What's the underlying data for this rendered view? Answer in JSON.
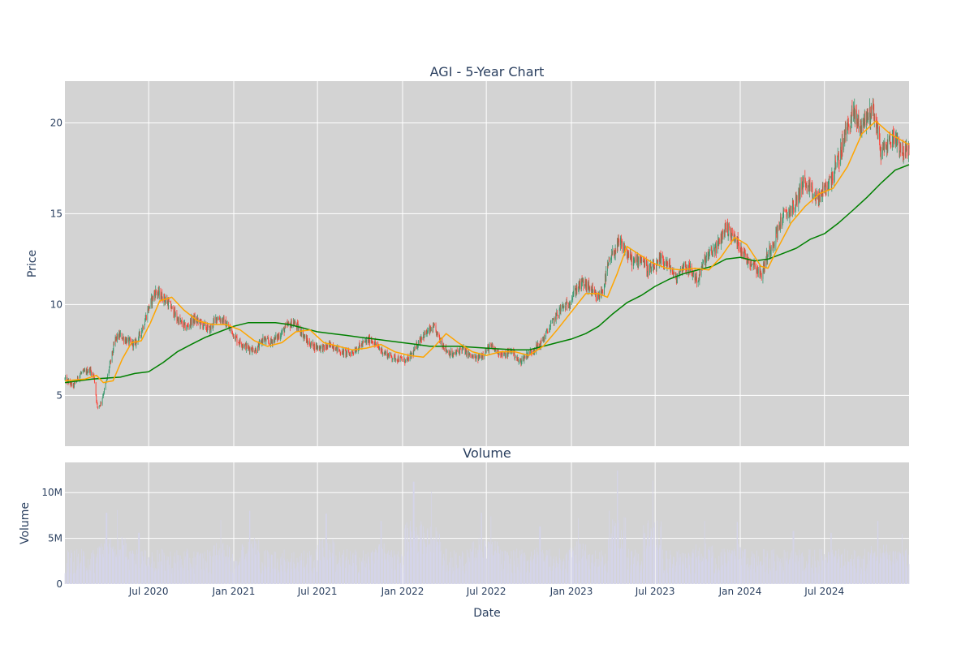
{
  "chart_data": [
    {
      "type": "candlestick",
      "title": "AGI - 5-Year Chart",
      "ylabel": "Price",
      "ylim": [
        2.2,
        22.3
      ],
      "yticks": [
        "5",
        "10",
        "15",
        "20"
      ],
      "grid": true,
      "x_range": [
        "2020-01-02",
        "2024-12-31"
      ],
      "colors": {
        "up": "#3d9970",
        "down": "#ff4136",
        "ma_short": "#ffa500",
        "ma_long": "#008000",
        "plot_bg": "#d3d3d3"
      },
      "price_path": [
        [
          "2020-01-02",
          5.9
        ],
        [
          "2020-01-20",
          5.5
        ],
        [
          "2020-02-05",
          6.2
        ],
        [
          "2020-02-25",
          6.4
        ],
        [
          "2020-03-05",
          6.0
        ],
        [
          "2020-03-12",
          4.3
        ],
        [
          "2020-03-20",
          4.6
        ],
        [
          "2020-04-01",
          5.8
        ],
        [
          "2020-04-10",
          6.9
        ],
        [
          "2020-04-20",
          8.1
        ],
        [
          "2020-04-30",
          8.3
        ],
        [
          "2020-05-15",
          8.0
        ],
        [
          "2020-06-01",
          7.8
        ],
        [
          "2020-06-15",
          8.5
        ],
        [
          "2020-07-01",
          9.8
        ],
        [
          "2020-07-15",
          10.7
        ],
        [
          "2020-08-01",
          10.4
        ],
        [
          "2020-08-15",
          10.0
        ],
        [
          "2020-09-01",
          9.2
        ],
        [
          "2020-09-20",
          8.7
        ],
        [
          "2020-10-05",
          9.2
        ],
        [
          "2020-10-20",
          9.0
        ],
        [
          "2020-11-10",
          8.6
        ],
        [
          "2020-11-25",
          9.3
        ],
        [
          "2020-12-10",
          9.1
        ],
        [
          "2020-12-25",
          8.6
        ],
        [
          "2021-01-10",
          8.0
        ],
        [
          "2021-02-01",
          7.6
        ],
        [
          "2021-02-20",
          7.5
        ],
        [
          "2021-03-05",
          8.1
        ],
        [
          "2021-03-20",
          7.9
        ],
        [
          "2021-04-10",
          8.3
        ],
        [
          "2021-04-25",
          8.8
        ],
        [
          "2021-05-10",
          9.0
        ],
        [
          "2021-05-25",
          8.6
        ],
        [
          "2021-06-10",
          7.9
        ],
        [
          "2021-06-25",
          7.7
        ],
        [
          "2021-07-15",
          7.6
        ],
        [
          "2021-08-01",
          7.8
        ],
        [
          "2021-08-20",
          7.4
        ],
        [
          "2021-09-10",
          7.3
        ],
        [
          "2021-09-25",
          7.6
        ],
        [
          "2021-10-10",
          7.9
        ],
        [
          "2021-10-25",
          8.1
        ],
        [
          "2021-11-10",
          7.6
        ],
        [
          "2021-11-25",
          7.3
        ],
        [
          "2021-12-10",
          7.1
        ],
        [
          "2021-12-25",
          7.0
        ],
        [
          "2022-01-10",
          6.9
        ],
        [
          "2022-01-25",
          7.4
        ],
        [
          "2022-02-10",
          8.2
        ],
        [
          "2022-02-25",
          8.5
        ],
        [
          "2022-03-10",
          8.7
        ],
        [
          "2022-03-20",
          8.2
        ],
        [
          "2022-04-05",
          7.5
        ],
        [
          "2022-04-20",
          7.2
        ],
        [
          "2022-05-10",
          7.6
        ],
        [
          "2022-05-25",
          7.2
        ],
        [
          "2022-06-10",
          7.0
        ],
        [
          "2022-06-25",
          7.3
        ],
        [
          "2022-07-10",
          7.7
        ],
        [
          "2022-07-25",
          7.4
        ],
        [
          "2022-08-10",
          7.2
        ],
        [
          "2022-08-25",
          7.5
        ],
        [
          "2022-09-10",
          6.8
        ],
        [
          "2022-09-25",
          7.2
        ],
        [
          "2022-10-10",
          7.5
        ],
        [
          "2022-10-25",
          7.8
        ],
        [
          "2022-11-10",
          8.5
        ],
        [
          "2022-11-25",
          9.2
        ],
        [
          "2022-12-10",
          9.8
        ],
        [
          "2022-12-25",
          10.0
        ],
        [
          "2023-01-10",
          10.8
        ],
        [
          "2023-01-25",
          11.2
        ],
        [
          "2023-02-10",
          10.9
        ],
        [
          "2023-02-25",
          10.3
        ],
        [
          "2023-03-10",
          10.8
        ],
        [
          "2023-03-20",
          12.0
        ],
        [
          "2023-04-01",
          12.8
        ],
        [
          "2023-04-15",
          13.4
        ],
        [
          "2023-05-01",
          12.8
        ],
        [
          "2023-05-15",
          12.3
        ],
        [
          "2023-06-01",
          12.6
        ],
        [
          "2023-06-15",
          11.9
        ],
        [
          "2023-07-01",
          12.0
        ],
        [
          "2023-07-15",
          12.5
        ],
        [
          "2023-08-01",
          12.1
        ],
        [
          "2023-08-15",
          11.4
        ],
        [
          "2023-09-01",
          12.2
        ],
        [
          "2023-09-15",
          11.9
        ],
        [
          "2023-10-01",
          11.3
        ],
        [
          "2023-10-15",
          12.4
        ],
        [
          "2023-11-01",
          12.9
        ],
        [
          "2023-11-15",
          13.3
        ],
        [
          "2023-12-01",
          14.3
        ],
        [
          "2023-12-15",
          13.8
        ],
        [
          "2024-01-01",
          13.2
        ],
        [
          "2024-01-15",
          12.5
        ],
        [
          "2024-02-01",
          12.2
        ],
        [
          "2024-02-15",
          11.6
        ],
        [
          "2024-03-01",
          12.8
        ],
        [
          "2024-03-15",
          13.6
        ],
        [
          "2024-04-01",
          14.8
        ],
        [
          "2024-04-15",
          15.1
        ],
        [
          "2024-05-01",
          15.6
        ],
        [
          "2024-05-15",
          16.8
        ],
        [
          "2024-06-01",
          16.2
        ],
        [
          "2024-06-15",
          15.8
        ],
        [
          "2024-07-01",
          16.3
        ],
        [
          "2024-07-15",
          16.9
        ],
        [
          "2024-08-01",
          18.0
        ],
        [
          "2024-08-15",
          19.4
        ],
        [
          "2024-09-01",
          20.6
        ],
        [
          "2024-09-15",
          19.8
        ],
        [
          "2024-10-01",
          20.3
        ],
        [
          "2024-10-15",
          20.8
        ],
        [
          "2024-11-01",
          18.3
        ],
        [
          "2024-11-15",
          18.9
        ],
        [
          "2024-12-01",
          19.3
        ],
        [
          "2024-12-15",
          18.5
        ],
        [
          "2024-12-31",
          18.3
        ]
      ],
      "ma_short": [
        [
          "2020-01-02",
          5.8
        ],
        [
          "2020-02-15",
          5.9
        ],
        [
          "2020-03-10",
          6.1
        ],
        [
          "2020-03-25",
          5.7
        ],
        [
          "2020-04-15",
          5.8
        ],
        [
          "2020-05-05",
          7.0
        ],
        [
          "2020-05-25",
          7.9
        ],
        [
          "2020-06-15",
          8.0
        ],
        [
          "2020-07-05",
          9.0
        ],
        [
          "2020-07-25",
          10.2
        ],
        [
          "2020-08-20",
          10.4
        ],
        [
          "2020-09-15",
          9.7
        ],
        [
          "2020-10-15",
          9.1
        ],
        [
          "2020-11-15",
          8.9
        ],
        [
          "2020-12-15",
          8.9
        ],
        [
          "2021-01-15",
          8.6
        ],
        [
          "2021-02-15",
          8.0
        ],
        [
          "2021-03-15",
          7.7
        ],
        [
          "2021-04-15",
          7.9
        ],
        [
          "2021-05-15",
          8.5
        ],
        [
          "2021-06-15",
          8.6
        ],
        [
          "2021-07-15",
          7.9
        ],
        [
          "2021-08-15",
          7.7
        ],
        [
          "2021-09-15",
          7.5
        ],
        [
          "2021-10-15",
          7.6
        ],
        [
          "2021-11-15",
          7.8
        ],
        [
          "2021-12-15",
          7.4
        ],
        [
          "2022-01-15",
          7.2
        ],
        [
          "2022-02-15",
          7.1
        ],
        [
          "2022-03-15",
          7.8
        ],
        [
          "2022-04-05",
          8.4
        ],
        [
          "2022-05-01",
          7.9
        ],
        [
          "2022-06-01",
          7.4
        ],
        [
          "2022-07-01",
          7.2
        ],
        [
          "2022-08-01",
          7.4
        ],
        [
          "2022-09-01",
          7.4
        ],
        [
          "2022-10-01",
          7.2
        ],
        [
          "2022-11-01",
          7.7
        ],
        [
          "2022-12-01",
          8.6
        ],
        [
          "2023-01-01",
          9.6
        ],
        [
          "2023-02-01",
          10.6
        ],
        [
          "2023-03-01",
          10.6
        ],
        [
          "2023-03-20",
          10.4
        ],
        [
          "2023-04-10",
          11.7
        ],
        [
          "2023-05-01",
          13.2
        ],
        [
          "2023-05-25",
          12.8
        ],
        [
          "2023-06-25",
          12.3
        ],
        [
          "2023-07-25",
          12.0
        ],
        [
          "2023-08-25",
          11.9
        ],
        [
          "2023-09-25",
          12.0
        ],
        [
          "2023-10-25",
          11.9
        ],
        [
          "2023-11-20",
          12.6
        ],
        [
          "2023-12-20",
          13.7
        ],
        [
          "2024-01-15",
          13.3
        ],
        [
          "2024-02-15",
          12.1
        ],
        [
          "2024-03-01",
          12.0
        ],
        [
          "2024-03-20",
          13.0
        ],
        [
          "2024-04-20",
          14.5
        ],
        [
          "2024-05-20",
          15.4
        ],
        [
          "2024-06-20",
          16.1
        ],
        [
          "2024-07-20",
          16.4
        ],
        [
          "2024-08-20",
          17.6
        ],
        [
          "2024-09-20",
          19.4
        ],
        [
          "2024-10-20",
          20.1
        ],
        [
          "2024-11-20",
          19.4
        ],
        [
          "2024-12-31",
          18.8
        ]
      ],
      "ma_long": [
        [
          "2020-01-02",
          5.7
        ],
        [
          "2020-03-01",
          5.9
        ],
        [
          "2020-05-01",
          6.0
        ],
        [
          "2020-06-01",
          6.2
        ],
        [
          "2020-07-01",
          6.3
        ],
        [
          "2020-08-01",
          6.8
        ],
        [
          "2020-09-01",
          7.4
        ],
        [
          "2020-10-01",
          7.8
        ],
        [
          "2020-11-01",
          8.2
        ],
        [
          "2020-12-01",
          8.5
        ],
        [
          "2021-01-01",
          8.8
        ],
        [
          "2021-02-01",
          9.0
        ],
        [
          "2021-03-01",
          9.0
        ],
        [
          "2021-04-01",
          9.0
        ],
        [
          "2021-05-01",
          8.9
        ],
        [
          "2021-06-01",
          8.7
        ],
        [
          "2021-07-01",
          8.5
        ],
        [
          "2021-08-01",
          8.4
        ],
        [
          "2021-09-01",
          8.3
        ],
        [
          "2021-10-01",
          8.2
        ],
        [
          "2021-11-01",
          8.1
        ],
        [
          "2021-12-01",
          8.0
        ],
        [
          "2022-01-01",
          7.9
        ],
        [
          "2022-02-01",
          7.8
        ],
        [
          "2022-03-01",
          7.7
        ],
        [
          "2022-05-01",
          7.7
        ],
        [
          "2022-07-01",
          7.6
        ],
        [
          "2022-09-01",
          7.5
        ],
        [
          "2022-10-01",
          7.5
        ],
        [
          "2022-11-01",
          7.7
        ],
        [
          "2022-12-01",
          7.9
        ],
        [
          "2023-01-01",
          8.1
        ],
        [
          "2023-02-01",
          8.4
        ],
        [
          "2023-03-01",
          8.8
        ],
        [
          "2023-04-01",
          9.5
        ],
        [
          "2023-05-01",
          10.1
        ],
        [
          "2023-06-01",
          10.5
        ],
        [
          "2023-07-01",
          11.0
        ],
        [
          "2023-08-01",
          11.4
        ],
        [
          "2023-09-01",
          11.7
        ],
        [
          "2023-10-01",
          11.9
        ],
        [
          "2023-11-01",
          12.1
        ],
        [
          "2023-12-01",
          12.5
        ],
        [
          "2024-01-01",
          12.6
        ],
        [
          "2024-02-01",
          12.4
        ],
        [
          "2024-03-01",
          12.5
        ],
        [
          "2024-04-01",
          12.8
        ],
        [
          "2024-05-01",
          13.1
        ],
        [
          "2024-06-01",
          13.6
        ],
        [
          "2024-07-01",
          13.9
        ],
        [
          "2024-08-01",
          14.5
        ],
        [
          "2024-09-01",
          15.2
        ],
        [
          "2024-10-01",
          15.9
        ],
        [
          "2024-11-01",
          16.7
        ],
        [
          "2024-12-01",
          17.4
        ],
        [
          "2024-12-31",
          17.7
        ]
      ]
    },
    {
      "type": "bar",
      "title": "Volume",
      "ylabel": "Volume",
      "xlabel": "Date",
      "ylim": [
        0,
        13300000
      ],
      "yticks": [
        "0",
        "5M",
        "10M"
      ],
      "xticks": [
        "Jul 2020",
        "Jan 2021",
        "Jul 2021",
        "Jan 2022",
        "Jul 2022",
        "Jan 2023",
        "Jul 2023",
        "Jan 2024",
        "Jul 2024"
      ],
      "color": "#d4d4ea",
      "typical_volume": 2500000,
      "spikes": [
        [
          "2020-04-01",
          7800000
        ],
        [
          "2020-04-25",
          8100000
        ],
        [
          "2020-06-10",
          5600000
        ],
        [
          "2020-12-05",
          7000000
        ],
        [
          "2021-02-05",
          8000000
        ],
        [
          "2021-07-20",
          7700000
        ],
        [
          "2021-11-15",
          6900000
        ],
        [
          "2022-01-25",
          11200000
        ],
        [
          "2022-03-05",
          10100000
        ],
        [
          "2022-06-20",
          7800000
        ],
        [
          "2022-07-10",
          7400000
        ],
        [
          "2022-10-25",
          6300000
        ],
        [
          "2023-01-15",
          7200000
        ],
        [
          "2023-04-10",
          12400000
        ],
        [
          "2023-06-25",
          11300000
        ],
        [
          "2023-10-15",
          6900000
        ],
        [
          "2023-12-25",
          6800000
        ],
        [
          "2024-04-25",
          5800000
        ],
        [
          "2024-07-15",
          5600000
        ],
        [
          "2024-10-25",
          6900000
        ],
        [
          "2024-12-15",
          5500000
        ]
      ]
    }
  ]
}
